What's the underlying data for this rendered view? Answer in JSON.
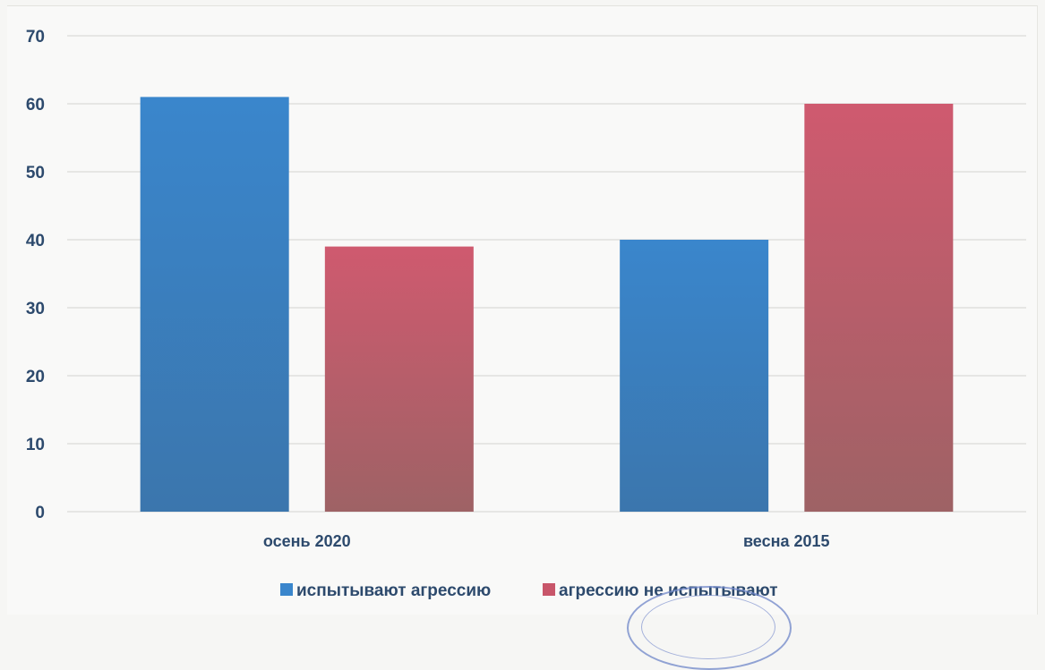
{
  "chart_data": {
    "type": "bar",
    "title": "",
    "xlabel": "",
    "ylabel": "",
    "categories": [
      "осень 2020",
      "весна 2015"
    ],
    "series": [
      {
        "name": "испытывают агрессию",
        "values": [
          61,
          40
        ],
        "color": "#3a86cc"
      },
      {
        "name": "агрессию не испытывают",
        "values": [
          39,
          60
        ],
        "color": "#c8566a"
      }
    ],
    "ylim": [
      0,
      70
    ],
    "yticks": [
      0,
      10,
      20,
      30,
      40,
      50,
      60,
      70
    ],
    "grid": true,
    "legend": "bottom"
  },
  "colors": {
    "axis_text": "#2d4a6d",
    "grid": "#dcdcd8",
    "series_1_bottom": "#3b76ad",
    "series_2_bottom": "#9e6265"
  },
  "stamp": {
    "kind": "seal"
  }
}
